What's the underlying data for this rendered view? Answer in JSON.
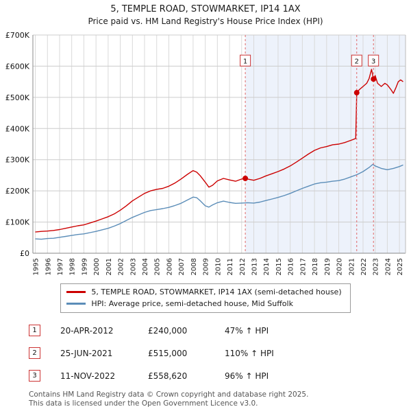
{
  "page": {
    "title": "5, TEMPLE ROAD, STOWMARKET, IP14 1AX",
    "subtitle": "Price paid vs. HM Land Registry's House Price Index (HPI)"
  },
  "chart_data": {
    "type": "line",
    "title": "5, TEMPLE ROAD, STOWMARKET, IP14 1AX: Price paid vs. HM Land Registry's House Price Index (HPI)",
    "x_range": [
      1994.8,
      2025.5
    ],
    "ylim": [
      0,
      700000
    ],
    "y_ticks": [
      0,
      100000,
      200000,
      300000,
      400000,
      500000,
      600000,
      700000
    ],
    "y_tick_labels": [
      "£0",
      "£100K",
      "£200K",
      "£300K",
      "£400K",
      "£500K",
      "£600K",
      "£700K"
    ],
    "x_ticks": [
      1995,
      1996,
      1997,
      1998,
      1999,
      2000,
      2001,
      2002,
      2003,
      2004,
      2005,
      2006,
      2007,
      2008,
      2009,
      2010,
      2011,
      2012,
      2013,
      2014,
      2015,
      2016,
      2017,
      2018,
      2019,
      2020,
      2021,
      2022,
      2023,
      2024,
      2025
    ],
    "grid": true,
    "shaded_from": 2012.3,
    "shade_color": "#edf2fb",
    "marker_y": 618000,
    "series": [
      {
        "name": "5, TEMPLE ROAD, STOWMARKET, IP14 1AX (semi-detached house)",
        "color": "#cc0000",
        "points": [
          [
            1995.0,
            68000
          ],
          [
            1995.5,
            70000
          ],
          [
            1996.0,
            71000
          ],
          [
            1996.5,
            73000
          ],
          [
            1997.0,
            76000
          ],
          [
            1997.5,
            80000
          ],
          [
            1998.0,
            84000
          ],
          [
            1998.5,
            88000
          ],
          [
            1999.0,
            91000
          ],
          [
            1999.5,
            97000
          ],
          [
            2000.0,
            103000
          ],
          [
            2000.5,
            110000
          ],
          [
            2001.0,
            117000
          ],
          [
            2001.5,
            126000
          ],
          [
            2002.0,
            138000
          ],
          [
            2002.5,
            152000
          ],
          [
            2003.0,
            168000
          ],
          [
            2003.5,
            180000
          ],
          [
            2004.0,
            192000
          ],
          [
            2004.5,
            200000
          ],
          [
            2005.0,
            205000
          ],
          [
            2005.5,
            208000
          ],
          [
            2006.0,
            215000
          ],
          [
            2006.5,
            225000
          ],
          [
            2007.0,
            238000
          ],
          [
            2007.5,
            252000
          ],
          [
            2008.0,
            265000
          ],
          [
            2008.3,
            260000
          ],
          [
            2008.6,
            248000
          ],
          [
            2009.0,
            228000
          ],
          [
            2009.3,
            212000
          ],
          [
            2009.6,
            218000
          ],
          [
            2010.0,
            232000
          ],
          [
            2010.5,
            240000
          ],
          [
            2011.0,
            235000
          ],
          [
            2011.5,
            231000
          ],
          [
            2012.0,
            238000
          ],
          [
            2012.3,
            240000
          ],
          [
            2012.6,
            237000
          ],
          [
            2013.0,
            234000
          ],
          [
            2013.5,
            240000
          ],
          [
            2014.0,
            248000
          ],
          [
            2014.5,
            255000
          ],
          [
            2015.0,
            262000
          ],
          [
            2015.5,
            270000
          ],
          [
            2016.0,
            280000
          ],
          [
            2016.5,
            292000
          ],
          [
            2017.0,
            305000
          ],
          [
            2017.5,
            318000
          ],
          [
            2018.0,
            330000
          ],
          [
            2018.5,
            338000
          ],
          [
            2019.0,
            342000
          ],
          [
            2019.5,
            348000
          ],
          [
            2020.0,
            350000
          ],
          [
            2020.5,
            355000
          ],
          [
            2021.0,
            362000
          ],
          [
            2021.4,
            368000
          ],
          [
            2021.48,
            515000
          ],
          [
            2021.7,
            525000
          ],
          [
            2022.0,
            535000
          ],
          [
            2022.3,
            545000
          ],
          [
            2022.5,
            560000
          ],
          [
            2022.7,
            590000
          ],
          [
            2022.86,
            558620
          ],
          [
            2023.0,
            570000
          ],
          [
            2023.2,
            545000
          ],
          [
            2023.5,
            535000
          ],
          [
            2023.8,
            545000
          ],
          [
            2024.0,
            540000
          ],
          [
            2024.3,
            525000
          ],
          [
            2024.5,
            513000
          ],
          [
            2024.7,
            530000
          ],
          [
            2024.9,
            550000
          ],
          [
            2025.1,
            556000
          ],
          [
            2025.3,
            550000
          ]
        ]
      },
      {
        "name": "HPI: Average price, semi-detached house, Mid Suffolk",
        "color": "#5b8db8",
        "points": [
          [
            1995.0,
            46000
          ],
          [
            1995.5,
            45000
          ],
          [
            1996.0,
            47000
          ],
          [
            1996.5,
            48000
          ],
          [
            1997.0,
            51000
          ],
          [
            1997.5,
            54000
          ],
          [
            1998.0,
            57000
          ],
          [
            1998.5,
            60000
          ],
          [
            1999.0,
            62000
          ],
          [
            1999.5,
            66000
          ],
          [
            2000.0,
            70000
          ],
          [
            2000.5,
            75000
          ],
          [
            2001.0,
            80000
          ],
          [
            2001.5,
            87000
          ],
          [
            2002.0,
            95000
          ],
          [
            2002.5,
            105000
          ],
          [
            2003.0,
            115000
          ],
          [
            2003.5,
            123000
          ],
          [
            2004.0,
            131000
          ],
          [
            2004.5,
            137000
          ],
          [
            2005.0,
            140000
          ],
          [
            2005.5,
            143000
          ],
          [
            2006.0,
            147000
          ],
          [
            2006.5,
            153000
          ],
          [
            2007.0,
            160000
          ],
          [
            2007.5,
            170000
          ],
          [
            2008.0,
            180000
          ],
          [
            2008.3,
            178000
          ],
          [
            2008.6,
            168000
          ],
          [
            2009.0,
            152000
          ],
          [
            2009.3,
            148000
          ],
          [
            2009.6,
            155000
          ],
          [
            2010.0,
            162000
          ],
          [
            2010.5,
            167000
          ],
          [
            2011.0,
            163000
          ],
          [
            2011.5,
            160000
          ],
          [
            2012.0,
            161000
          ],
          [
            2012.5,
            162000
          ],
          [
            2013.0,
            161000
          ],
          [
            2013.5,
            164000
          ],
          [
            2014.0,
            169000
          ],
          [
            2014.5,
            174000
          ],
          [
            2015.0,
            179000
          ],
          [
            2015.5,
            185000
          ],
          [
            2016.0,
            192000
          ],
          [
            2016.5,
            200000
          ],
          [
            2017.0,
            208000
          ],
          [
            2017.5,
            215000
          ],
          [
            2018.0,
            222000
          ],
          [
            2018.5,
            226000
          ],
          [
            2019.0,
            228000
          ],
          [
            2019.5,
            231000
          ],
          [
            2020.0,
            233000
          ],
          [
            2020.5,
            238000
          ],
          [
            2021.0,
            245000
          ],
          [
            2021.5,
            252000
          ],
          [
            2022.0,
            262000
          ],
          [
            2022.5,
            275000
          ],
          [
            2022.8,
            285000
          ],
          [
            2023.0,
            280000
          ],
          [
            2023.5,
            272000
          ],
          [
            2024.0,
            268000
          ],
          [
            2024.5,
            272000
          ],
          [
            2025.0,
            278000
          ],
          [
            2025.3,
            283000
          ]
        ]
      }
    ],
    "sales": [
      {
        "label": "1",
        "x": 2012.3,
        "y": 240000
      },
      {
        "label": "2",
        "x": 2021.48,
        "y": 515000
      },
      {
        "label": "3",
        "x": 2022.86,
        "y": 558620
      }
    ]
  },
  "transactions": [
    {
      "num": "1",
      "date": "20-APR-2012",
      "price": "£240,000",
      "hpi": "47% ↑ HPI"
    },
    {
      "num": "2",
      "date": "25-JUN-2021",
      "price": "£515,000",
      "hpi": "110% ↑ HPI"
    },
    {
      "num": "3",
      "date": "11-NOV-2022",
      "price": "£558,620",
      "hpi": "96% ↑ HPI"
    }
  ],
  "footer": {
    "line1": "Contains HM Land Registry data © Crown copyright and database right 2025.",
    "line2": "This data is licensed under the Open Government Licence v3.0."
  }
}
